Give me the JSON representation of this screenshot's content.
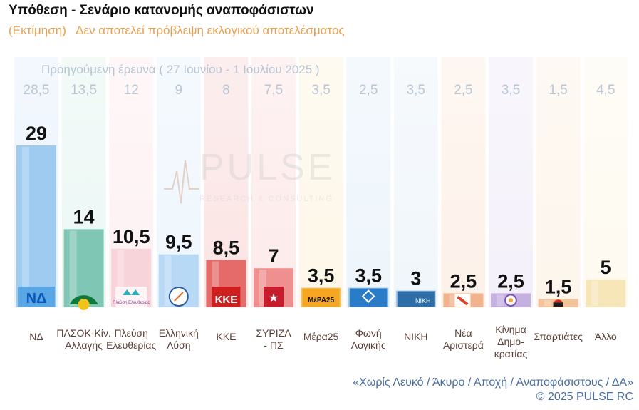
{
  "chart_data": {
    "type": "bar",
    "title": "Υπόθεση - Σενάριο κατανομής αναποφάσιστων",
    "subtitle_tag": "(Εκτίμηση)",
    "subtitle_note": "Δεν αποτελεί πρόβλεψη εκλογικού αποτελέσματος",
    "previous_label": "Προηγούμενη έρευνα ( 27 Ιουνίου - 1 Ιουλίου 2025 )",
    "ylim": [
      0,
      29
    ],
    "categories": [
      {
        "label": [
          "ΝΔ"
        ],
        "value": "29",
        "previous": "28,5",
        "color": "#9fcbf0",
        "bg": "#eaf3fc",
        "logo": "ΝΔ"
      },
      {
        "label": [
          "ΠΑΣΟΚ-Κίν.",
          "Αλλαγής"
        ],
        "value": "14",
        "previous": "13,5",
        "color": "#7fc6b5",
        "bg": "#ebf7f4",
        "logo": "sun"
      },
      {
        "label": [
          "Πλεύση",
          "Ελευθερίας"
        ],
        "value": "10,5",
        "previous": "12",
        "color": "#f7d4da",
        "bg": "#fdf1f3",
        "logo": "Πλεύση Ελευθερίας"
      },
      {
        "label": [
          "Ελληνική",
          "Λύση"
        ],
        "value": "9,5",
        "previous": "9",
        "color": "#b7d9f5",
        "bg": "#eef6fd",
        "logo": "compass"
      },
      {
        "label": [
          "ΚΚΕ"
        ],
        "value": "8,5",
        "previous": "8",
        "color": "#e56a6a",
        "bg": "#fbe3e3",
        "logo": "ΚΚΕ"
      },
      {
        "label": [
          "ΣΥΡΙΖΑ",
          "- ΠΣ"
        ],
        "value": "7",
        "previous": "7,5",
        "color": "#f08f8f",
        "bg": "#fdeaea",
        "logo": "star"
      },
      {
        "label": [
          "Μέρα25"
        ],
        "value": "3,5",
        "previous": "3,5",
        "color": "#f4c267",
        "bg": "#fef7e8",
        "logo": "ΜέΡΑ25"
      },
      {
        "label": [
          "Φωνή",
          "Λογικής"
        ],
        "value": "3,5",
        "previous": "2,5",
        "color": "#8dc3ea",
        "bg": "#edf5fc",
        "logo": "diamonds"
      },
      {
        "label": [
          "ΝΙΚΗ"
        ],
        "value": "3",
        "previous": "3,5",
        "color": "#a9c9e6",
        "bg": "#f0f6fb",
        "logo": "ΝΙΚΗ"
      },
      {
        "label": [
          "Νέα",
          "Αριστερά"
        ],
        "value": "2,5",
        "previous": "2,5",
        "color": "#f1b28c",
        "bg": "#fdf1e9",
        "logo": "arrow"
      },
      {
        "label": [
          "Κίνημα",
          "Δημο-",
          "κρατίας"
        ],
        "value": "2,5",
        "previous": "3,5",
        "color": "#c5b0df",
        "bg": "#f4f0fa",
        "logo": "flower"
      },
      {
        "label": [
          "Σπαρτιάτες"
        ],
        "value": "1,5",
        "previous": "1,5",
        "color": "#f2c49a",
        "bg": "#fdf5ec",
        "logo": "helmet"
      },
      {
        "label": [
          "Άλλο"
        ],
        "value": "5",
        "previous": "4,5",
        "color": "#f6e6b8",
        "bg": "#fefaf0",
        "logo": ""
      }
    ]
  },
  "watermark": {
    "brand": "PULSE",
    "tagline": "RESEARCH & CONSULTING"
  },
  "footnote": "«Χωρίς Λευκό / Άκυρο / Αποχή / Αναποφάσιστους / ΔΑ»",
  "copyright": "©  2025  PULSE RC"
}
